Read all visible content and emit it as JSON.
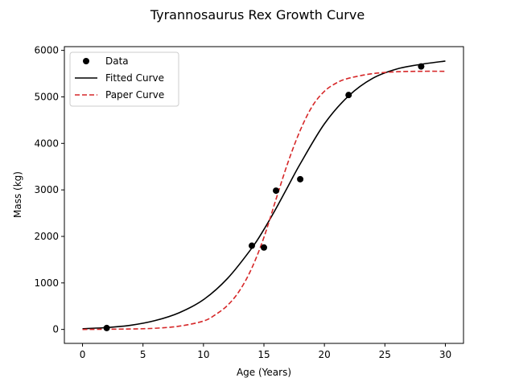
{
  "chart_data": {
    "type": "line",
    "title": "Tyrannosaurus Rex Growth Curve",
    "xlabel": "Age (Years)",
    "ylabel": "Mass (kg)",
    "xlim": [
      -1.5,
      31.5
    ],
    "ylim": [
      -300,
      6080
    ],
    "xticks": [
      0,
      5,
      10,
      15,
      20,
      25,
      30
    ],
    "yticks": [
      0,
      1000,
      2000,
      3000,
      4000,
      5000,
      6000
    ],
    "grid": false,
    "legend_position": "top-left",
    "series": [
      {
        "name": "Data",
        "kind": "scatter",
        "color": "#000000",
        "points": [
          {
            "x": 2,
            "y": 29.9
          },
          {
            "x": 14,
            "y": 1800
          },
          {
            "x": 15,
            "y": 1761
          },
          {
            "x": 16,
            "y": 2984
          },
          {
            "x": 18,
            "y": 3230
          },
          {
            "x": 22,
            "y": 5040
          },
          {
            "x": 28,
            "y": 5654
          }
        ]
      },
      {
        "name": "Fitted Curve",
        "kind": "line",
        "color": "#000000",
        "style": "solid",
        "x": [
          0,
          2,
          4,
          6,
          8,
          10,
          12,
          14,
          15,
          16,
          17,
          18,
          20,
          22,
          24,
          26,
          28,
          30
        ],
        "y": [
          15,
          40,
          90,
          190,
          360,
          640,
          1100,
          1750,
          2150,
          2600,
          3080,
          3560,
          4420,
          5020,
          5400,
          5600,
          5700,
          5770
        ]
      },
      {
        "name": "Paper Curve",
        "kind": "line",
        "color": "#d62728",
        "style": "dashed",
        "x": [
          0,
          4,
          6,
          8,
          10,
          11,
          12,
          13,
          14,
          15,
          16,
          17,
          18,
          19,
          20,
          21,
          22,
          24,
          26,
          28,
          30
        ],
        "y": [
          0,
          10,
          25,
          70,
          180,
          320,
          520,
          840,
          1320,
          1980,
          2800,
          3600,
          4280,
          4800,
          5120,
          5300,
          5400,
          5500,
          5540,
          5550,
          5550
        ]
      }
    ]
  }
}
